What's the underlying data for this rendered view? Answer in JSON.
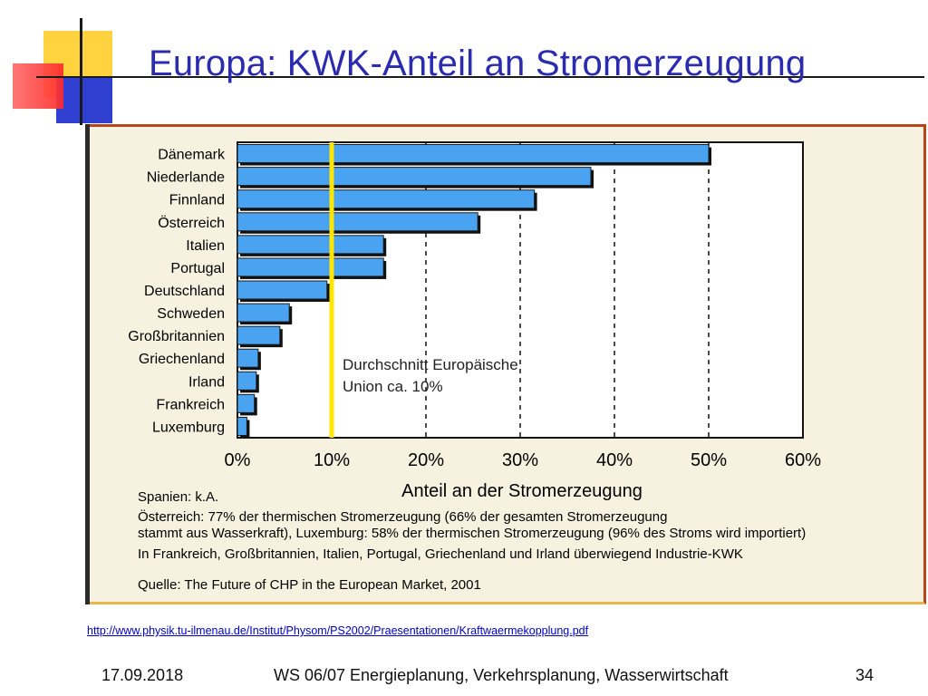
{
  "slide": {
    "title": "Europa: KWK-Anteil an Stromerzeugung",
    "url": "http://www.physik.tu-ilmenau.de/Institut/Physom/PS2002/Praesentationen/Kraftwaermekopplung.pdf",
    "footer_date": "17.09.2018",
    "footer_center": "WS 06/07 Energieplanung, Verkehrsplanung, Wasserwirtschaft",
    "footer_page": "34"
  },
  "notes": [
    "Spanien: k.A.",
    "Österreich: 77% der thermischen Stromerzeugung (66% der gesamten Stromerzeugung",
    "stammt aus Wasserkraft), Luxemburg: 58% der thermischen Stromerzeugung (96% des Stroms wird importiert)",
    "In Frankreich, Großbritannien, Italien, Portugal, Griechenland und Irland überwiegend Industrie-KWK",
    "Quelle: The Future of CHP in the European Market, 2001"
  ],
  "chart_data": {
    "type": "bar",
    "orientation": "horizontal",
    "categories": [
      "Dänemark",
      "Niederlande",
      "Finnland",
      "Österreich",
      "Italien",
      "Portugal",
      "Deutschland",
      "Schweden",
      "Großbritannien",
      "Griechenland",
      "Irland",
      "Frankreich",
      "Luxemburg"
    ],
    "values": [
      50,
      37.5,
      31.5,
      25.5,
      15.5,
      15.5,
      9.5,
      5.5,
      4.5,
      2.2,
      2.0,
      1.8,
      1.0
    ],
    "xlabel": "Anteil an der Stromerzeugung",
    "xlim": [
      0,
      60
    ],
    "xticks": [
      "0%",
      "10%",
      "20%",
      "30%",
      "40%",
      "50%",
      "60%"
    ],
    "gridlines": "dashed vertical",
    "reference_line": {
      "value": 10,
      "label_lines": [
        "Durchschnitt Europäische",
        "Union ca. 10%"
      ]
    },
    "colors": {
      "bar": "#4aa3f0",
      "reference": "#ffe600"
    }
  }
}
